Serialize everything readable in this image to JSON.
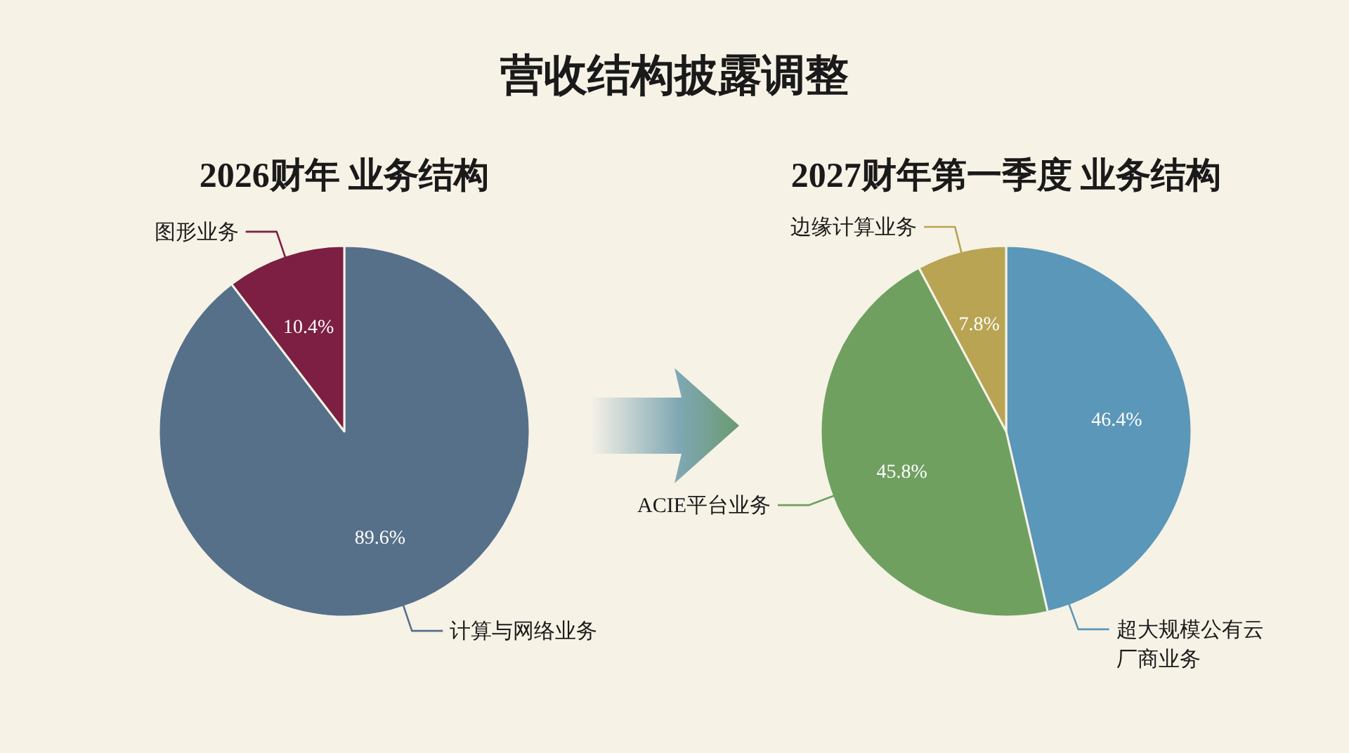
{
  "chart_data": [
    {
      "type": "other",
      "title": "营收结构披露调整"
    },
    {
      "type": "pie",
      "title": "2026财年 业务结构",
      "categories": [
        "计算与网络业务",
        "图形业务"
      ],
      "values": [
        89.6,
        10.4
      ],
      "colors": [
        "#56708a",
        "#7c1f42"
      ],
      "value_labels": [
        "89.6%",
        "10.4%"
      ]
    },
    {
      "type": "pie",
      "title": "2027财年第一季度 业务结构",
      "categories": [
        "超大规模公有云厂商业务",
        "ACIE平台业务",
        "边缘计算业务"
      ],
      "values": [
        46.4,
        45.8,
        7.8
      ],
      "colors": [
        "#5b97b8",
        "#6fa060",
        "#b8a453"
      ],
      "value_labels": [
        "46.4%",
        "45.8%",
        "7.8%"
      ]
    }
  ]
}
